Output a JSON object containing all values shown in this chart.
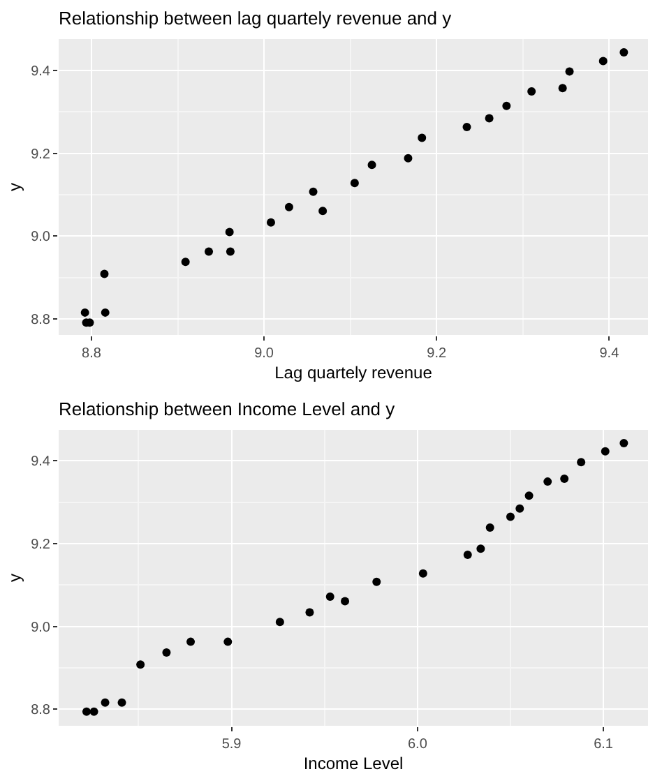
{
  "chart_data": [
    {
      "type": "scatter",
      "title": "Relationship between lag quartely revenue and y",
      "xlabel": "Lag quartely revenue",
      "ylabel": "y",
      "marker": "circle",
      "grid": true,
      "color": "#000000",
      "x": [
        8.7925,
        8.794,
        8.798,
        8.815,
        8.816,
        8.909,
        8.936,
        8.96,
        8.961,
        9.008,
        9.029,
        9.057,
        9.068,
        9.105,
        9.125,
        9.167,
        9.183,
        9.235,
        9.261,
        9.281,
        9.31,
        9.346,
        9.354,
        9.393,
        9.417
      ],
      "values": [
        8.816,
        8.792,
        8.792,
        8.909,
        8.816,
        8.938,
        8.963,
        9.01,
        8.963,
        9.033,
        9.07,
        9.107,
        9.061,
        9.128,
        9.172,
        9.188,
        9.237,
        9.263,
        9.284,
        9.314,
        9.349,
        9.357,
        9.397,
        9.422,
        9.443
      ],
      "xlim": [
        8.762,
        9.445
      ],
      "xticks": [
        8.8,
        {
          "value": 9.0,
          "label": "9.0"
        },
        9.2,
        9.4
      ],
      "ylim": [
        8.762,
        9.475
      ],
      "yticks": [
        8.8,
        {
          "value": 9.0,
          "label": "9.0"
        },
        9.2,
        9.4
      ]
    },
    {
      "type": "scatter",
      "title": "Relationship between Income Level and y",
      "xlabel": "Income Level",
      "ylabel": "y",
      "marker": "circle",
      "grid": true,
      "color": "#000000",
      "x": [
        5.822,
        5.826,
        5.832,
        5.841,
        5.851,
        5.865,
        5.878,
        5.898,
        5.926,
        5.942,
        5.953,
        5.961,
        5.978,
        6.003,
        6.027,
        6.034,
        6.039,
        6.05,
        6.055,
        6.06,
        6.07,
        6.079,
        6.088,
        6.101,
        6.111
      ],
      "values": [
        8.794,
        8.794,
        8.816,
        8.816,
        8.908,
        8.937,
        8.963,
        8.963,
        9.011,
        9.034,
        9.072,
        9.061,
        9.108,
        9.128,
        9.173,
        9.188,
        9.239,
        9.265,
        9.285,
        9.316,
        9.35,
        9.357,
        9.397,
        9.423,
        9.443
      ],
      "xlim": [
        5.807,
        6.124
      ],
      "xticks": [
        5.9,
        {
          "value": 6.0,
          "label": "6.0"
        },
        6.1
      ],
      "ylim": [
        8.76,
        9.475
      ],
      "yticks": [
        8.8,
        {
          "value": 9.0,
          "label": "9.0"
        },
        9.2,
        9.4
      ]
    }
  ]
}
